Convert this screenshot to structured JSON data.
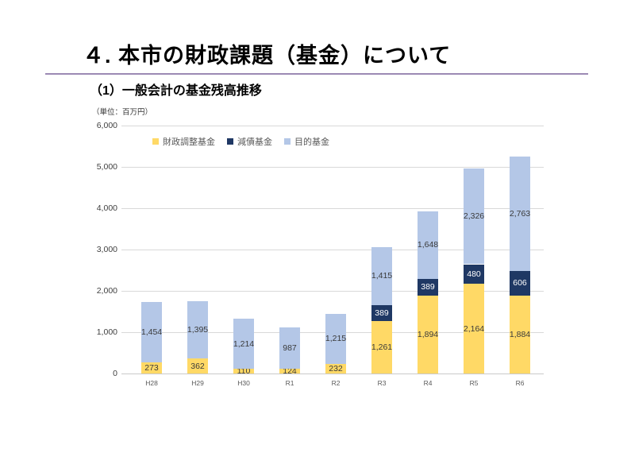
{
  "header": {
    "title": "４. 本市の財政課題（基金）について",
    "subtitle": "（1）一般会計の基金残高推移",
    "unit_label": "（単位：百万円）",
    "divider_color": "#9c8ab4"
  },
  "chart_data": {
    "type": "bar",
    "stacked": true,
    "title": "一般会計の基金残高推移",
    "unit": "百万円",
    "categories": [
      "H28",
      "H29",
      "H30",
      "R1",
      "R2",
      "R3",
      "R4",
      "R5",
      "R6"
    ],
    "series": [
      {
        "name": "財政調整基金",
        "color": "#FFD966",
        "label_color": "#3a3a3a",
        "values": [
          273,
          362,
          110,
          124,
          232,
          1261,
          1894,
          2164,
          1884
        ]
      },
      {
        "name": "減債基金",
        "color": "#1F3864",
        "label_color": "#ffffff",
        "values": [
          0,
          0,
          0,
          0,
          0,
          389,
          389,
          480,
          606
        ]
      },
      {
        "name": "目的基金",
        "color": "#B4C7E7",
        "label_color": "#3a3a3a",
        "values": [
          1454,
          1395,
          1214,
          987,
          1215,
          1415,
          1648,
          2326,
          2763
        ]
      }
    ],
    "totals": [
      1727,
      1757,
      1324,
      1111,
      1447,
      3065,
      3931,
      4970,
      5253
    ],
    "ylim": [
      0,
      6000
    ],
    "ytick_step": 1000,
    "yticks": [
      "0",
      "1,000",
      "2,000",
      "3,000",
      "4,000",
      "5,000",
      "6,000"
    ],
    "grid": true,
    "legend_position": "top-left",
    "colors": {
      "gridline": "#d9d9d9",
      "axis_line": "#c9c9c9",
      "ytick_text": "#404040",
      "xtick_text": "#595959",
      "legend_text": "#595959"
    }
  }
}
